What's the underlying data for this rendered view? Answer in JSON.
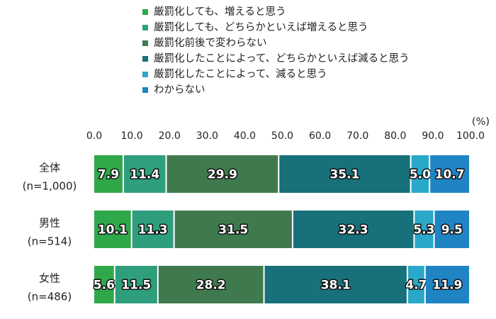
{
  "chart_data": {
    "type": "bar",
    "orientation": "horizontal",
    "stacked": true,
    "unit_label": "(%)",
    "xlim": [
      0,
      100
    ],
    "ticks": [
      "0.0",
      "10.0",
      "20.0",
      "30.0",
      "40.0",
      "50.0",
      "60.0",
      "70.0",
      "80.0",
      "90.0",
      "100.0"
    ],
    "categories": [
      {
        "label": "全体",
        "sublabel": "(n=1,000)"
      },
      {
        "label": "男性",
        "sublabel": "(n=514)"
      },
      {
        "label": "女性",
        "sublabel": "(n=486)"
      }
    ],
    "series": [
      {
        "name": "厳罰化しても、増えると思う",
        "color": "#2fa84a",
        "values": [
          7.9,
          10.1,
          5.6
        ]
      },
      {
        "name": "厳罰化しても、どちらかといえば増えると思う",
        "color": "#2e9e7c",
        "values": [
          11.4,
          11.3,
          11.5
        ]
      },
      {
        "name": "厳罰化前後で変わらない",
        "color": "#3f7a4e",
        "values": [
          29.9,
          31.5,
          28.2
        ]
      },
      {
        "name": "厳罰化したことによって、どちらかといえば減ると思う",
        "color": "#17707a",
        "values": [
          35.1,
          32.3,
          38.1
        ]
      },
      {
        "name": "厳罰化したことによって、減ると思う",
        "color": "#2aa8c9",
        "values": [
          5.0,
          5.3,
          4.7
        ]
      },
      {
        "name": "わからない",
        "color": "#1f84c4",
        "values": [
          10.7,
          9.5,
          11.9
        ]
      }
    ],
    "legend_position": "top"
  }
}
